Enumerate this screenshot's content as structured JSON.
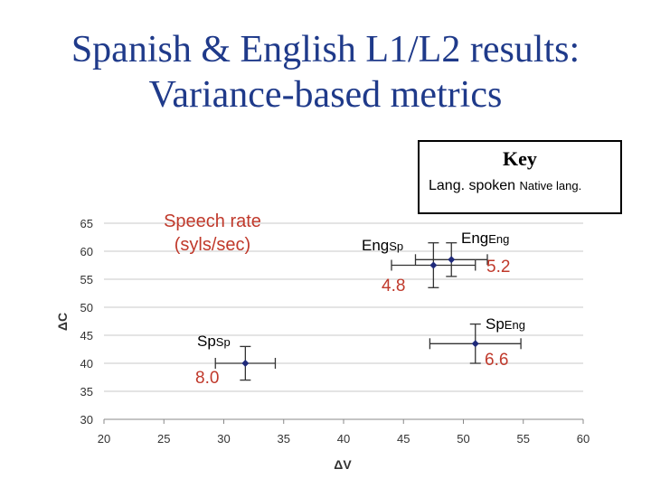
{
  "slide": {
    "title_line1": "Spanish & English L1/L2 results:",
    "title_line2": "Variance-based metrics"
  },
  "key": {
    "title": "Key",
    "lang_spoken": "Lang. spoken",
    "native_lang": "Native lang."
  },
  "speech_rate_label_line1": "Speech rate",
  "speech_rate_label_line2": "(syls/sec)",
  "colors": {
    "title": "#1F3A8A",
    "marker": "#1F2A7A",
    "value_text": "#C0392B",
    "grid": "#C8C8C8"
  },
  "chart_data": {
    "type": "scatter",
    "xlabel": "ΔV",
    "ylabel": "ΔC",
    "xlim": [
      20,
      60
    ],
    "ylim": [
      30,
      65
    ],
    "xticks": [
      20,
      25,
      30,
      35,
      40,
      45,
      50,
      55,
      60
    ],
    "yticks": [
      30,
      35,
      40,
      45,
      50,
      55,
      60,
      65
    ],
    "grid": "horizontal",
    "points": [
      {
        "lang": "Sp",
        "native": "Sp",
        "x": 31.8,
        "y": 40.0,
        "x_err": 2.5,
        "y_err": 3.0,
        "speech_rate": "8.0"
      },
      {
        "lang": "Eng",
        "native": "Sp",
        "x": 47.5,
        "y": 57.5,
        "x_err": 3.5,
        "y_err": 4.0,
        "speech_rate": "4.8"
      },
      {
        "lang": "Eng",
        "native": "Eng",
        "x": 49.0,
        "y": 58.5,
        "x_err": 3.0,
        "y_err": 3.0,
        "speech_rate": "5.2"
      },
      {
        "lang": "Sp",
        "native": "Eng",
        "x": 51.0,
        "y": 43.5,
        "x_err": 3.8,
        "y_err": 3.5,
        "speech_rate": "6.6"
      }
    ]
  }
}
